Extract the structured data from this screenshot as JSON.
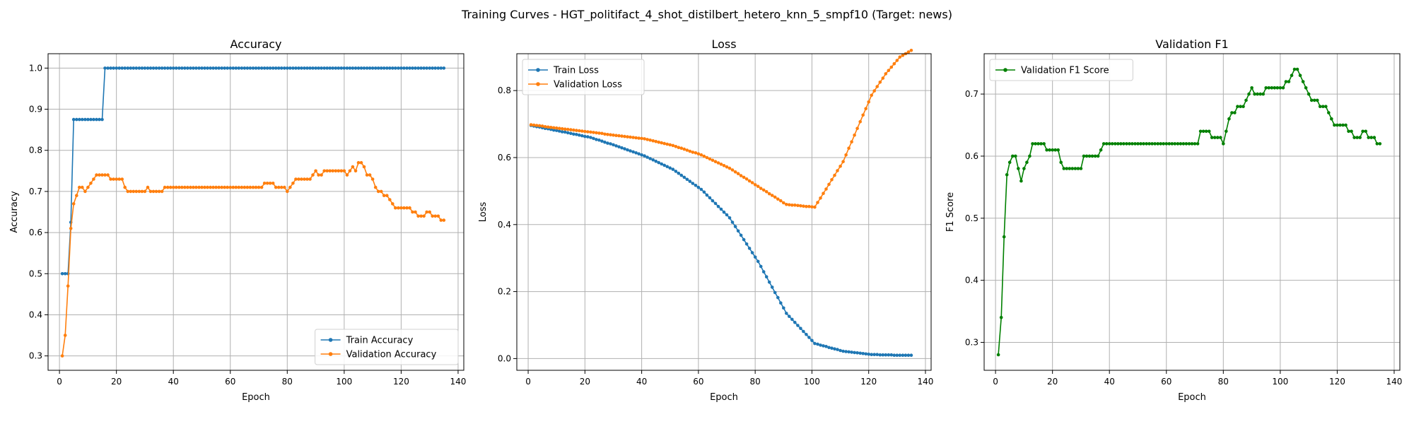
{
  "suptitle": "Training Curves - HGT_politifact_4_shot_distilbert_hetero_knn_5_smpf10 (Target: news)",
  "chart_data": [
    {
      "type": "line",
      "title": "Accuracy",
      "xlabel": "Epoch",
      "ylabel": "Accuracy",
      "xlim": [
        -4,
        142
      ],
      "ylim": [
        0.265,
        1.035
      ],
      "xticks": [
        0,
        20,
        40,
        60,
        80,
        100,
        120,
        140
      ],
      "yticks": [
        0.3,
        0.4,
        0.5,
        0.6,
        0.7,
        0.8,
        0.9,
        1.0
      ],
      "ytick_labels": [
        "0.3",
        "0.4",
        "0.5",
        "0.6",
        "0.7",
        "0.8",
        "0.9",
        "1.0"
      ],
      "grid": true,
      "legend": "lower right",
      "series": [
        {
          "name": "Train Accuracy",
          "color": "#1f77b4",
          "x_start": 1,
          "values": [
            0.5,
            0.5,
            0.5,
            0.625,
            0.875,
            0.875,
            0.875,
            0.875,
            0.875,
            0.875,
            0.875,
            0.875,
            0.875,
            0.875,
            0.875,
            1,
            1,
            1,
            1,
            1,
            1,
            1,
            1,
            1,
            1,
            1,
            1,
            1,
            1,
            1,
            1,
            1,
            1,
            1,
            1,
            1,
            1,
            1,
            1,
            1,
            1,
            1,
            1,
            1,
            1,
            1,
            1,
            1,
            1,
            1,
            1,
            1,
            1,
            1,
            1,
            1,
            1,
            1,
            1,
            1,
            1,
            1,
            1,
            1,
            1,
            1,
            1,
            1,
            1,
            1,
            1,
            1,
            1,
            1,
            1,
            1,
            1,
            1,
            1,
            1,
            1,
            1,
            1,
            1,
            1,
            1,
            1,
            1,
            1,
            1,
            1,
            1,
            1,
            1,
            1,
            1,
            1,
            1,
            1,
            1,
            1,
            1,
            1,
            1,
            1,
            1,
            1,
            1,
            1,
            1,
            1,
            1,
            1,
            1,
            1,
            1,
            1,
            1,
            1,
            1,
            1,
            1,
            1,
            1,
            1,
            1,
            1,
            1,
            1,
            1,
            1,
            1,
            1,
            1,
            1
          ]
        },
        {
          "name": "Validation Accuracy",
          "color": "#ff7f0e",
          "x_start": 1,
          "values": [
            0.3,
            0.35,
            0.47,
            0.61,
            0.67,
            0.69,
            0.71,
            0.71,
            0.7,
            0.71,
            0.72,
            0.73,
            0.74,
            0.74,
            0.74,
            0.74,
            0.74,
            0.73,
            0.73,
            0.73,
            0.73,
            0.73,
            0.71,
            0.7,
            0.7,
            0.7,
            0.7,
            0.7,
            0.7,
            0.7,
            0.71,
            0.7,
            0.7,
            0.7,
            0.7,
            0.7,
            0.71,
            0.71,
            0.71,
            0.71,
            0.71,
            0.71,
            0.71,
            0.71,
            0.71,
            0.71,
            0.71,
            0.71,
            0.71,
            0.71,
            0.71,
            0.71,
            0.71,
            0.71,
            0.71,
            0.71,
            0.71,
            0.71,
            0.71,
            0.71,
            0.71,
            0.71,
            0.71,
            0.71,
            0.71,
            0.71,
            0.71,
            0.71,
            0.71,
            0.71,
            0.71,
            0.72,
            0.72,
            0.72,
            0.72,
            0.71,
            0.71,
            0.71,
            0.71,
            0.7,
            0.71,
            0.72,
            0.73,
            0.73,
            0.73,
            0.73,
            0.73,
            0.73,
            0.74,
            0.75,
            0.74,
            0.74,
            0.75,
            0.75,
            0.75,
            0.75,
            0.75,
            0.75,
            0.75,
            0.75,
            0.74,
            0.75,
            0.76,
            0.75,
            0.77,
            0.77,
            0.76,
            0.74,
            0.74,
            0.73,
            0.71,
            0.7,
            0.7,
            0.69,
            0.69,
            0.68,
            0.67,
            0.66,
            0.66,
            0.66,
            0.66,
            0.66,
            0.66,
            0.65,
            0.65,
            0.64,
            0.64,
            0.64,
            0.65,
            0.65,
            0.64,
            0.64,
            0.64,
            0.63,
            0.63
          ]
        }
      ]
    },
    {
      "type": "line",
      "title": "Loss",
      "xlabel": "Epoch",
      "ylabel": "Loss",
      "xlim": [
        -4,
        142
      ],
      "ylim": [
        -0.035,
        0.91
      ],
      "xticks": [
        0,
        20,
        40,
        60,
        80,
        100,
        120,
        140
      ],
      "yticks": [
        0.0,
        0.2,
        0.4,
        0.6,
        0.8
      ],
      "ytick_labels": [
        "0.0",
        "0.2",
        "0.4",
        "0.6",
        "0.8"
      ],
      "grid": true,
      "legend": "upper left",
      "series": [
        {
          "name": "Train Loss",
          "color": "#1f77b4",
          "x_start": 1,
          "values": [
            0.696,
            0.694,
            0.692,
            0.691,
            0.689,
            0.687,
            0.686,
            0.684,
            0.682,
            0.681,
            0.679,
            0.677,
            0.676,
            0.674,
            0.672,
            0.67,
            0.669,
            0.667,
            0.665,
            0.663,
            0.662,
            0.66,
            0.657,
            0.654,
            0.652,
            0.649,
            0.646,
            0.643,
            0.641,
            0.638,
            0.635,
            0.632,
            0.629,
            0.626,
            0.623,
            0.62,
            0.617,
            0.614,
            0.611,
            0.608,
            0.605,
            0.601,
            0.597,
            0.593,
            0.589,
            0.585,
            0.581,
            0.577,
            0.573,
            0.569,
            0.565,
            0.559,
            0.553,
            0.547,
            0.541,
            0.535,
            0.529,
            0.523,
            0.517,
            0.511,
            0.505,
            0.497,
            0.488,
            0.48,
            0.471,
            0.463,
            0.454,
            0.446,
            0.437,
            0.429,
            0.42,
            0.407,
            0.394,
            0.381,
            0.368,
            0.355,
            0.342,
            0.329,
            0.316,
            0.303,
            0.29,
            0.275,
            0.259,
            0.244,
            0.228,
            0.213,
            0.197,
            0.182,
            0.166,
            0.151,
            0.135,
            0.126,
            0.117,
            0.108,
            0.099,
            0.09,
            0.081,
            0.072,
            0.063,
            0.054,
            0.045,
            0.043,
            0.04,
            0.038,
            0.036,
            0.033,
            0.031,
            0.029,
            0.027,
            0.024,
            0.022,
            0.021,
            0.02,
            0.019,
            0.018,
            0.017,
            0.016,
            0.015,
            0.014,
            0.013,
            0.012,
            0.012,
            0.012,
            0.011,
            0.011,
            0.011,
            0.011,
            0.011,
            0.01,
            0.01,
            0.01,
            0.01,
            0.01,
            0.01,
            0.01
          ]
        },
        {
          "name": "Validation Loss",
          "color": "#ff7f0e",
          "x_start": 1,
          "values": [
            0.698,
            0.697,
            0.696,
            0.695,
            0.694,
            0.692,
            0.691,
            0.69,
            0.689,
            0.688,
            0.687,
            0.686,
            0.685,
            0.684,
            0.683,
            0.682,
            0.681,
            0.68,
            0.679,
            0.678,
            0.677,
            0.676,
            0.675,
            0.674,
            0.673,
            0.672,
            0.67,
            0.669,
            0.668,
            0.667,
            0.666,
            0.665,
            0.664,
            0.663,
            0.662,
            0.661,
            0.66,
            0.659,
            0.658,
            0.657,
            0.656,
            0.654,
            0.652,
            0.65,
            0.648,
            0.646,
            0.644,
            0.642,
            0.64,
            0.638,
            0.636,
            0.633,
            0.63,
            0.628,
            0.625,
            0.622,
            0.619,
            0.616,
            0.614,
            0.611,
            0.608,
            0.604,
            0.6,
            0.596,
            0.592,
            0.588,
            0.584,
            0.58,
            0.576,
            0.572,
            0.568,
            0.563,
            0.557,
            0.552,
            0.546,
            0.541,
            0.536,
            0.53,
            0.525,
            0.519,
            0.514,
            0.508,
            0.503,
            0.498,
            0.492,
            0.487,
            0.482,
            0.476,
            0.471,
            0.465,
            0.46,
            0.459,
            0.458,
            0.458,
            0.457,
            0.456,
            0.455,
            0.454,
            0.454,
            0.453,
            0.452,
            0.466,
            0.479,
            0.493,
            0.506,
            0.52,
            0.534,
            0.547,
            0.561,
            0.574,
            0.588,
            0.608,
            0.628,
            0.647,
            0.667,
            0.687,
            0.707,
            0.727,
            0.746,
            0.766,
            0.786,
            0.799,
            0.812,
            0.825,
            0.837,
            0.85,
            0.86,
            0.87,
            0.88,
            0.89,
            0.9,
            0.905,
            0.91,
            0.915,
            0.92
          ]
        }
      ]
    },
    {
      "type": "line",
      "title": "Validation F1",
      "xlabel": "Epoch",
      "ylabel": "F1 Score",
      "xlim": [
        -4,
        142
      ],
      "ylim": [
        0.255,
        0.765
      ],
      "xticks": [
        0,
        20,
        40,
        60,
        80,
        100,
        120,
        140
      ],
      "yticks": [
        0.3,
        0.4,
        0.5,
        0.6,
        0.7
      ],
      "ytick_labels": [
        "0.3",
        "0.4",
        "0.5",
        "0.6",
        "0.7"
      ],
      "grid": true,
      "legend": "upper left",
      "series": [
        {
          "name": "Validation F1 Score",
          "color": "#008000",
          "x_start": 1,
          "values": [
            0.28,
            0.34,
            0.47,
            0.57,
            0.59,
            0.6,
            0.6,
            0.58,
            0.56,
            0.58,
            0.59,
            0.6,
            0.62,
            0.62,
            0.62,
            0.62,
            0.62,
            0.61,
            0.61,
            0.61,
            0.61,
            0.61,
            0.59,
            0.58,
            0.58,
            0.58,
            0.58,
            0.58,
            0.58,
            0.58,
            0.6,
            0.6,
            0.6,
            0.6,
            0.6,
            0.6,
            0.61,
            0.62,
            0.62,
            0.62,
            0.62,
            0.62,
            0.62,
            0.62,
            0.62,
            0.62,
            0.62,
            0.62,
            0.62,
            0.62,
            0.62,
            0.62,
            0.62,
            0.62,
            0.62,
            0.62,
            0.62,
            0.62,
            0.62,
            0.62,
            0.62,
            0.62,
            0.62,
            0.62,
            0.62,
            0.62,
            0.62,
            0.62,
            0.62,
            0.62,
            0.62,
            0.64,
            0.64,
            0.64,
            0.64,
            0.63,
            0.63,
            0.63,
            0.63,
            0.62,
            0.64,
            0.66,
            0.67,
            0.67,
            0.68,
            0.68,
            0.68,
            0.69,
            0.7,
            0.71,
            0.7,
            0.7,
            0.7,
            0.7,
            0.71,
            0.71,
            0.71,
            0.71,
            0.71,
            0.71,
            0.71,
            0.72,
            0.72,
            0.73,
            0.74,
            0.74,
            0.73,
            0.72,
            0.71,
            0.7,
            0.69,
            0.69,
            0.69,
            0.68,
            0.68,
            0.68,
            0.67,
            0.66,
            0.65,
            0.65,
            0.65,
            0.65,
            0.65,
            0.64,
            0.64,
            0.63,
            0.63,
            0.63,
            0.64,
            0.64,
            0.63,
            0.63,
            0.63,
            0.62,
            0.62
          ]
        }
      ]
    }
  ]
}
